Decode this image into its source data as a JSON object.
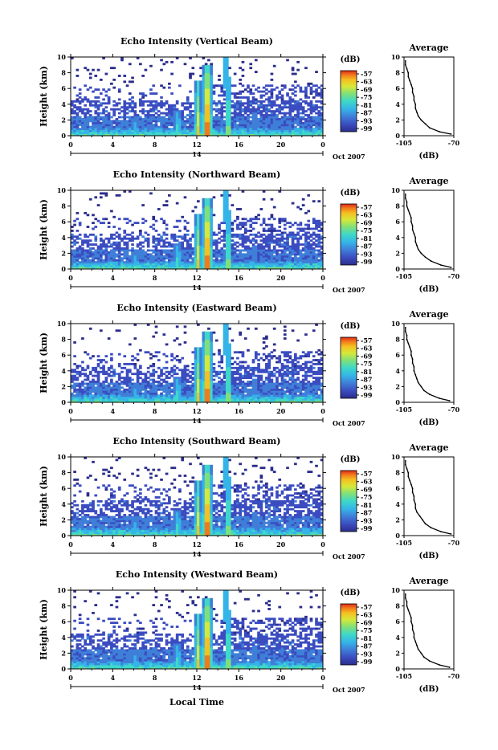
{
  "chart_data": [
    {
      "type": "heatmap",
      "title": "Echo Intensity (Vertical Beam)",
      "ylabel": "Height (km)",
      "x_ticks": [
        "0",
        "4",
        "8",
        "12",
        "16",
        "20",
        "0"
      ],
      "xlim": [
        0,
        24
      ],
      "y_ticks": [
        "0",
        "2",
        "4",
        "6",
        "8",
        "10"
      ],
      "ylim": [
        0,
        10
      ],
      "day_label": "14",
      "date_label": "Oct 2007",
      "colorbar": {
        "unit": "(dB)",
        "ticks": [
          "-57",
          "-63",
          "-69",
          "-75",
          "-81",
          "-87",
          "-93",
          "-99"
        ]
      },
      "average_profile": {
        "title": "Average",
        "xlabel": "(dB)",
        "x_ticks": [
          "-105",
          "-70"
        ],
        "xlim": [
          -105,
          -70
        ],
        "y_ticks": [
          "0",
          "2",
          "4",
          "6",
          "8",
          "10"
        ],
        "ylim": [
          0,
          10
        ],
        "height_km": [
          0.2,
          0.5,
          1,
          1.5,
          2,
          2.5,
          3,
          3.5,
          4,
          4.5,
          5,
          5.5,
          6,
          6.5,
          7,
          7.5,
          8,
          8.5,
          9,
          9.5
        ],
        "value_db": [
          -72,
          -80,
          -87,
          -90,
          -93,
          -95,
          -96,
          -97,
          -97,
          -98,
          -98,
          -99,
          -99,
          -100,
          -101,
          -102,
          -102,
          -103,
          -104,
          -104
        ]
      }
    },
    {
      "type": "heatmap",
      "title": "Echo Intensity (Northward Beam)",
      "ylabel": "Height (km)",
      "x_ticks": [
        "0",
        "4",
        "8",
        "12",
        "16",
        "20",
        "0"
      ],
      "xlim": [
        0,
        24
      ],
      "y_ticks": [
        "0",
        "2",
        "4",
        "6",
        "8",
        "10"
      ],
      "ylim": [
        0,
        10
      ],
      "day_label": "14",
      "date_label": "Oct 2007",
      "colorbar": {
        "unit": "(dB)",
        "ticks": [
          "-57",
          "-63",
          "-69",
          "-75",
          "-81",
          "-87",
          "-93",
          "-99"
        ]
      },
      "average_profile": {
        "title": "Average",
        "xlabel": "(dB)",
        "x_ticks": [
          "-105",
          "-70"
        ],
        "xlim": [
          -105,
          -70
        ],
        "y_ticks": [
          "0",
          "2",
          "4",
          "6",
          "8",
          "10"
        ],
        "ylim": [
          0,
          10
        ],
        "height_km": [
          0.2,
          0.5,
          1,
          1.5,
          2,
          2.5,
          3,
          3.5,
          4,
          4.5,
          5,
          5.5,
          6,
          6.5,
          7,
          7.5,
          8,
          8.5,
          9,
          9.5
        ],
        "value_db": [
          -72,
          -79,
          -86,
          -90,
          -93,
          -95,
          -96,
          -97,
          -97,
          -98,
          -99,
          -99,
          -100,
          -100,
          -101,
          -102,
          -103,
          -103,
          -104,
          -104
        ]
      }
    },
    {
      "type": "heatmap",
      "title": "Echo Intensity (Eastward Beam)",
      "ylabel": "Height (km)",
      "x_ticks": [
        "0",
        "4",
        "8",
        "12",
        "16",
        "20",
        "0"
      ],
      "xlim": [
        0,
        24
      ],
      "y_ticks": [
        "0",
        "2",
        "4",
        "6",
        "8",
        "10"
      ],
      "ylim": [
        0,
        10
      ],
      "day_label": "14",
      "date_label": "Oct 2007",
      "colorbar": {
        "unit": "(dB)",
        "ticks": [
          "-57",
          "-63",
          "-69",
          "-75",
          "-81",
          "-87",
          "-93",
          "-99"
        ]
      },
      "average_profile": {
        "title": "Average",
        "xlabel": "(dB)",
        "x_ticks": [
          "-105",
          "-70"
        ],
        "xlim": [
          -105,
          -70
        ],
        "y_ticks": [
          "0",
          "2",
          "4",
          "6",
          "8",
          "10"
        ],
        "ylim": [
          0,
          10
        ],
        "height_km": [
          0.2,
          0.5,
          1,
          1.5,
          2,
          2.5,
          3,
          3.5,
          4,
          4.5,
          5,
          5.5,
          6,
          6.5,
          7,
          7.5,
          8,
          8.5,
          9,
          9.5
        ],
        "value_db": [
          -73,
          -80,
          -87,
          -91,
          -93,
          -95,
          -96,
          -97,
          -98,
          -98,
          -99,
          -99,
          -100,
          -100,
          -101,
          -102,
          -103,
          -103,
          -104,
          -104
        ]
      }
    },
    {
      "type": "heatmap",
      "title": "Echo Intensity (Southward Beam)",
      "ylabel": "Height (km)",
      "x_ticks": [
        "0",
        "4",
        "8",
        "12",
        "16",
        "20",
        "0"
      ],
      "xlim": [
        0,
        24
      ],
      "y_ticks": [
        "0",
        "2",
        "4",
        "6",
        "8",
        "10"
      ],
      "ylim": [
        0,
        10
      ],
      "day_label": "14",
      "date_label": "Oct 2007",
      "colorbar": {
        "unit": "(dB)",
        "ticks": [
          "-57",
          "-63",
          "-69",
          "-75",
          "-81",
          "-87",
          "-93",
          "-99"
        ]
      },
      "average_profile": {
        "title": "Average",
        "xlabel": "(dB)",
        "x_ticks": [
          "-105",
          "-70"
        ],
        "xlim": [
          -105,
          -70
        ],
        "y_ticks": [
          "0",
          "2",
          "4",
          "6",
          "8",
          "10"
        ],
        "ylim": [
          0,
          10
        ],
        "height_km": [
          0.2,
          0.5,
          1,
          1.5,
          2,
          2.5,
          3,
          3.5,
          4,
          4.5,
          5,
          5.5,
          6,
          6.5,
          7,
          7.5,
          8,
          8.5,
          9,
          9.5
        ],
        "value_db": [
          -72,
          -79,
          -86,
          -90,
          -92,
          -94,
          -96,
          -97,
          -97,
          -98,
          -98,
          -99,
          -99,
          -100,
          -101,
          -102,
          -102,
          -103,
          -104,
          -104
        ]
      }
    },
    {
      "type": "heatmap",
      "title": "Echo Intensity (Westward Beam)",
      "ylabel": "Height (km)",
      "x_ticks": [
        "0",
        "4",
        "8",
        "12",
        "16",
        "20",
        "0"
      ],
      "xlim": [
        0,
        24
      ],
      "y_ticks": [
        "0",
        "2",
        "4",
        "6",
        "8",
        "10"
      ],
      "ylim": [
        0,
        10
      ],
      "day_label": "14",
      "date_label": "Oct 2007",
      "colorbar": {
        "unit": "(dB)",
        "ticks": [
          "-57",
          "-63",
          "-69",
          "-75",
          "-81",
          "-87",
          "-93",
          "-99"
        ]
      },
      "average_profile": {
        "title": "Average",
        "xlabel": "(dB)",
        "x_ticks": [
          "-105",
          "-70"
        ],
        "xlim": [
          -105,
          -70
        ],
        "y_ticks": [
          "0",
          "2",
          "4",
          "6",
          "8",
          "10"
        ],
        "ylim": [
          0,
          10
        ],
        "height_km": [
          0.2,
          0.5,
          1,
          1.5,
          2,
          2.5,
          3,
          3.5,
          4,
          4.5,
          5,
          5.5,
          6,
          6.5,
          7,
          7.5,
          8,
          8.5,
          9,
          9.5
        ],
        "value_db": [
          -73,
          -80,
          -87,
          -91,
          -93,
          -95,
          -96,
          -97,
          -98,
          -98,
          -99,
          -99,
          -100,
          -100,
          -101,
          -102,
          -103,
          -103,
          -104,
          -104
        ]
      }
    }
  ],
  "shared_xlabel": "Local Time",
  "colormap": [
    "#2b2d8c",
    "#3b4cc0",
    "#3f7fd8",
    "#35b4e8",
    "#3fd8c8",
    "#7fe07a",
    "#d6e83a",
    "#f5c020",
    "#f27a1c",
    "#e02a1a"
  ]
}
